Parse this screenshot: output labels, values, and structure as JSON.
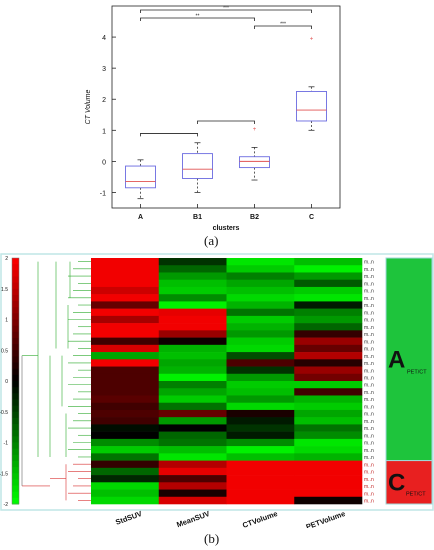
{
  "panel_a": {
    "label": "(a)"
  },
  "panel_b": {
    "label": "(b)"
  },
  "chart_data": [
    {
      "type": "box",
      "xlabel": "clusters",
      "ylabel": "CT Volume",
      "ylim": [
        -1.5,
        5
      ],
      "yticks": [
        "-1",
        "0",
        "1",
        "2",
        "3",
        "4"
      ],
      "categories": [
        "A",
        "B1",
        "B2",
        "C"
      ],
      "boxes": [
        {
          "name": "A",
          "min": -1.2,
          "q1": -0.85,
          "median": -0.65,
          "q3": -0.15,
          "max": 0.05,
          "outliers": []
        },
        {
          "name": "B1",
          "min": -1.0,
          "q1": -0.55,
          "median": -0.25,
          "q3": 0.25,
          "max": 0.6,
          "outliers": []
        },
        {
          "name": "B2",
          "min": -0.6,
          "q1": -0.2,
          "median": 0.0,
          "q3": 0.15,
          "max": 0.45,
          "outliers": [
            1.05
          ]
        },
        {
          "name": "C",
          "min": 1.0,
          "q1": 1.3,
          "median": 1.65,
          "q3": 2.25,
          "max": 2.4,
          "outliers": [
            3.95
          ]
        }
      ],
      "significance": [
        {
          "from": "A",
          "to": "C",
          "label": "***"
        },
        {
          "from": "A",
          "to": "B2",
          "label": "**"
        },
        {
          "from": "B2",
          "to": "C",
          "label": "***"
        },
        {
          "from": "A",
          "to": "B1",
          "label": ""
        },
        {
          "from": "B1",
          "to": "B2",
          "label": ""
        }
      ],
      "colors": {
        "box": "#6a6ae0",
        "median": "#e05050",
        "whisker": "#333333"
      }
    },
    {
      "type": "heatmap",
      "columns": [
        "StdSUV",
        "MeanSUV",
        "CTVolume",
        "PETVolume"
      ],
      "colorbar": {
        "ticks": [
          "2",
          "1.5",
          "1",
          "0.5",
          "0",
          "-0.5",
          "-1",
          "-1.5",
          "-2"
        ],
        "min": -2,
        "max": 2
      },
      "clusters": [
        {
          "letter": "A",
          "sub": "PET/CT",
          "color": "#1ec43c"
        },
        {
          "letter": "C",
          "sub": "PET/CT",
          "color": "#e82020"
        }
      ],
      "dendrogram_colors": {
        "a": "#2eaa2e",
        "c": "#d83030"
      },
      "row_label": "m..n",
      "matrix": [
        [
          1.9,
          -0.4,
          -1.8,
          -1.5
        ],
        [
          1.9,
          -0.8,
          -1.6,
          -1.9
        ],
        [
          1.9,
          -1.2,
          -1.0,
          -1.2
        ],
        [
          1.9,
          -1.5,
          -1.3,
          -0.7
        ],
        [
          1.6,
          -1.6,
          -1.5,
          -1.6
        ],
        [
          1.9,
          -1.1,
          -1.7,
          -1.8
        ],
        [
          0.8,
          -1.9,
          -1.4,
          -0.2
        ],
        [
          1.9,
          1.8,
          -0.9,
          -1.0
        ],
        [
          1.3,
          1.9,
          -1.6,
          -1.2
        ],
        [
          1.9,
          1.9,
          -1.4,
          -0.8
        ],
        [
          1.9,
          1.2,
          -1.2,
          0.4
        ],
        [
          0.5,
          0.1,
          -1.6,
          1.2
        ],
        [
          1.7,
          -1.4,
          -1.7,
          0.8
        ],
        [
          -1.3,
          -1.5,
          -0.6,
          1.4
        ],
        [
          1.9,
          -1.3,
          0.6,
          0.3
        ],
        [
          0.6,
          -1.4,
          -0.4,
          1.2
        ],
        [
          0.6,
          -1.9,
          -1.2,
          0.9
        ],
        [
          0.6,
          -1.0,
          -1.6,
          -1.6
        ],
        [
          0.6,
          -1.3,
          -1.5,
          0.5
        ],
        [
          0.7,
          -1.6,
          -1.2,
          -1.4
        ],
        [
          0.5,
          -0.9,
          -1.7,
          -1.6
        ],
        [
          0.6,
          0.8,
          0.2,
          -1.3
        ],
        [
          0.5,
          -1.2,
          -0.2,
          -1.5
        ],
        [
          -0.1,
          0.0,
          -0.4,
          -0.9
        ],
        [
          0.0,
          -0.8,
          -0.2,
          -1.1
        ],
        [
          -1.1,
          -0.9,
          -1.1,
          -1.8
        ],
        [
          -1.6,
          -1.5,
          -1.9,
          -1.7
        ],
        [
          -0.9,
          -1.8,
          -1.5,
          -1.4
        ],
        [
          0.4,
          1.4,
          1.9,
          1.9
        ],
        [
          -0.8,
          1.8,
          1.9,
          1.9
        ],
        [
          -0.3,
          0.6,
          1.9,
          1.9
        ],
        [
          -1.7,
          1.4,
          1.9,
          1.9
        ],
        [
          -1.5,
          0.2,
          1.9,
          1.9
        ],
        [
          -1.7,
          1.7,
          1.9,
          0.1
        ]
      ],
      "split_row": 28
    }
  ]
}
